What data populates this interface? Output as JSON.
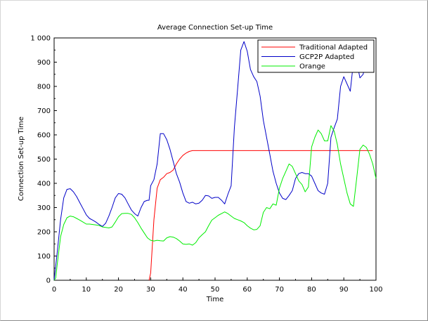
{
  "chart_data": {
    "type": "line",
    "title": "Average Connection Set-up Time",
    "xlabel": "Time",
    "ylabel": "Connection Set-up Time",
    "xlim": [
      0,
      100
    ],
    "ylim": [
      0,
      1000
    ],
    "x_ticks": [
      0,
      10,
      20,
      30,
      40,
      50,
      60,
      70,
      80,
      90,
      100
    ],
    "x_tick_labels": [
      "0",
      "10",
      "20",
      "30",
      "40",
      "50",
      "60",
      "70",
      "80",
      "90",
      "100"
    ],
    "y_ticks": [
      0,
      100,
      200,
      300,
      400,
      500,
      600,
      700,
      800,
      900,
      1000
    ],
    "y_tick_labels": [
      "0",
      "100",
      "200",
      "300",
      "400",
      "500",
      "600",
      "700",
      "800",
      "900",
      "1 000"
    ],
    "grid": false,
    "legend_position": "top-right",
    "series": [
      {
        "name": "Traditional Adapted",
        "color": "#ff0000",
        "points": [
          [
            29.5,
            0
          ],
          [
            30,
            30
          ],
          [
            31,
            250
          ],
          [
            32,
            380
          ],
          [
            33,
            415
          ],
          [
            34,
            425
          ],
          [
            35,
            440
          ],
          [
            36,
            445
          ],
          [
            37,
            455
          ],
          [
            38,
            480
          ],
          [
            39,
            500
          ],
          [
            40,
            515
          ],
          [
            41,
            525
          ],
          [
            42,
            532
          ],
          [
            43,
            535
          ],
          [
            45,
            535
          ],
          [
            50,
            535
          ],
          [
            55,
            535
          ],
          [
            60,
            535
          ],
          [
            65,
            535
          ],
          [
            70,
            535
          ],
          [
            75,
            535
          ],
          [
            80,
            535
          ],
          [
            85,
            535
          ],
          [
            90,
            535
          ],
          [
            95,
            535
          ],
          [
            99,
            535
          ]
        ]
      },
      {
        "name": "GCP2P Adapted",
        "color": "#0000c8",
        "points": [
          [
            0,
            0
          ],
          [
            1,
            120
          ],
          [
            2,
            250
          ],
          [
            3,
            340
          ],
          [
            4,
            375
          ],
          [
            5,
            378
          ],
          [
            6,
            365
          ],
          [
            7,
            345
          ],
          [
            8,
            320
          ],
          [
            9,
            295
          ],
          [
            10,
            270
          ],
          [
            11,
            255
          ],
          [
            12,
            248
          ],
          [
            13,
            240
          ],
          [
            14,
            230
          ],
          [
            15,
            222
          ],
          [
            16,
            235
          ],
          [
            17,
            265
          ],
          [
            18,
            300
          ],
          [
            19,
            340
          ],
          [
            20,
            358
          ],
          [
            21,
            355
          ],
          [
            22,
            340
          ],
          [
            23,
            315
          ],
          [
            24,
            290
          ],
          [
            25,
            275
          ],
          [
            26,
            265
          ],
          [
            27,
            300
          ],
          [
            28,
            325
          ],
          [
            29,
            330
          ],
          [
            29.5,
            330
          ],
          [
            30,
            390
          ],
          [
            31,
            415
          ],
          [
            32,
            480
          ],
          [
            33,
            605
          ],
          [
            34,
            605
          ],
          [
            35,
            580
          ],
          [
            36,
            540
          ],
          [
            37,
            490
          ],
          [
            38,
            440
          ],
          [
            39,
            405
          ],
          [
            40,
            360
          ],
          [
            41,
            325
          ],
          [
            42,
            318
          ],
          [
            43,
            322
          ],
          [
            44,
            315
          ],
          [
            45,
            318
          ],
          [
            46,
            330
          ],
          [
            47,
            350
          ],
          [
            48,
            348
          ],
          [
            49,
            338
          ],
          [
            50,
            342
          ],
          [
            51,
            342
          ],
          [
            52,
            330
          ],
          [
            53,
            315
          ],
          [
            54,
            355
          ],
          [
            55,
            390
          ],
          [
            56,
            630
          ],
          [
            57,
            790
          ],
          [
            58,
            950
          ],
          [
            59,
            985
          ],
          [
            60,
            945
          ],
          [
            61,
            870
          ],
          [
            62,
            840
          ],
          [
            63,
            820
          ],
          [
            64,
            760
          ],
          [
            65,
            660
          ],
          [
            66,
            590
          ],
          [
            67,
            520
          ],
          [
            68,
            450
          ],
          [
            69,
            400
          ],
          [
            70,
            360
          ],
          [
            71,
            338
          ],
          [
            72,
            333
          ],
          [
            73,
            350
          ],
          [
            74,
            370
          ],
          [
            75,
            420
          ],
          [
            76,
            440
          ],
          [
            77,
            445
          ],
          [
            78,
            440
          ],
          [
            79,
            440
          ],
          [
            80,
            430
          ],
          [
            81,
            400
          ],
          [
            82,
            370
          ],
          [
            83,
            360
          ],
          [
            84,
            355
          ],
          [
            85,
            400
          ],
          [
            86,
            590
          ],
          [
            87,
            630
          ],
          [
            88,
            665
          ],
          [
            89,
            800
          ],
          [
            90,
            840
          ],
          [
            91,
            810
          ],
          [
            92,
            780
          ],
          [
            93,
            900
          ],
          [
            94,
            905
          ],
          [
            95,
            835
          ],
          [
            96,
            850
          ],
          [
            97,
            910
          ],
          [
            99,
            910
          ]
        ]
      },
      {
        "name": "Orange",
        "color": "#00ee00",
        "points": [
          [
            0,
            0
          ],
          [
            0.5,
            10
          ],
          [
            1,
            70
          ],
          [
            2,
            180
          ],
          [
            3,
            230
          ],
          [
            4,
            258
          ],
          [
            5,
            265
          ],
          [
            6,
            262
          ],
          [
            7,
            255
          ],
          [
            8,
            248
          ],
          [
            9,
            240
          ],
          [
            10,
            232
          ],
          [
            11,
            232
          ],
          [
            12,
            230
          ],
          [
            13,
            228
          ],
          [
            14,
            226
          ],
          [
            15,
            220
          ],
          [
            16,
            218
          ],
          [
            17,
            216
          ],
          [
            18,
            220
          ],
          [
            19,
            240
          ],
          [
            20,
            262
          ],
          [
            21,
            275
          ],
          [
            22,
            276
          ],
          [
            23,
            276
          ],
          [
            24,
            272
          ],
          [
            25,
            258
          ],
          [
            26,
            238
          ],
          [
            27,
            215
          ],
          [
            28,
            195
          ],
          [
            29,
            175
          ],
          [
            30,
            165
          ],
          [
            31,
            162
          ],
          [
            32,
            165
          ],
          [
            33,
            163
          ],
          [
            34,
            162
          ],
          [
            35,
            175
          ],
          [
            36,
            180
          ],
          [
            37,
            178
          ],
          [
            38,
            172
          ],
          [
            39,
            162
          ],
          [
            40,
            150
          ],
          [
            41,
            148
          ],
          [
            42,
            150
          ],
          [
            43,
            145
          ],
          [
            44,
            155
          ],
          [
            45,
            175
          ],
          [
            46,
            188
          ],
          [
            47,
            200
          ],
          [
            48,
            225
          ],
          [
            49,
            248
          ],
          [
            50,
            258
          ],
          [
            51,
            268
          ],
          [
            52,
            275
          ],
          [
            53,
            282
          ],
          [
            54,
            275
          ],
          [
            55,
            265
          ],
          [
            56,
            255
          ],
          [
            57,
            250
          ],
          [
            58,
            245
          ],
          [
            59,
            238
          ],
          [
            60,
            225
          ],
          [
            61,
            215
          ],
          [
            62,
            208
          ],
          [
            63,
            210
          ],
          [
            64,
            225
          ],
          [
            65,
            280
          ],
          [
            66,
            300
          ],
          [
            67,
            295
          ],
          [
            68,
            315
          ],
          [
            69,
            310
          ],
          [
            70,
            380
          ],
          [
            71,
            420
          ],
          [
            72,
            450
          ],
          [
            73,
            480
          ],
          [
            74,
            470
          ],
          [
            75,
            440
          ],
          [
            76,
            410
          ],
          [
            77,
            395
          ],
          [
            78,
            365
          ],
          [
            79,
            385
          ],
          [
            80,
            550
          ],
          [
            81,
            590
          ],
          [
            82,
            620
          ],
          [
            83,
            605
          ],
          [
            84,
            575
          ],
          [
            85,
            575
          ],
          [
            86,
            638
          ],
          [
            87,
            615
          ],
          [
            88,
            560
          ],
          [
            89,
            480
          ],
          [
            90,
            420
          ],
          [
            91,
            360
          ],
          [
            92,
            315
          ],
          [
            93,
            305
          ],
          [
            94,
            420
          ],
          [
            95,
            540
          ],
          [
            96,
            558
          ],
          [
            97,
            548
          ],
          [
            98,
            520
          ],
          [
            99,
            480
          ],
          [
            100,
            420
          ]
        ]
      }
    ]
  }
}
